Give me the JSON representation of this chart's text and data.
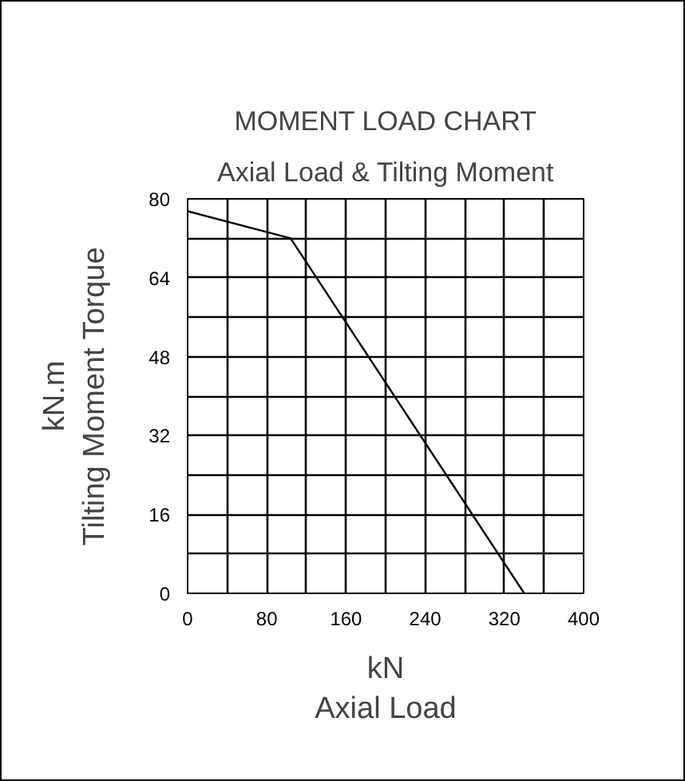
{
  "chart_data": {
    "type": "line",
    "title": "MOMENT LOAD CHART",
    "subtitle": "Axial Load & Tilting Moment",
    "xlabel": "kN\nAxial Load",
    "ylabel": "kN.m\nTilting Moment Torque",
    "xlim": [
      0,
      400
    ],
    "ylim": [
      0,
      80
    ],
    "xticks": [
      0,
      {
        "value": 40,
        "label": null
      },
      80,
      {
        "value": 120,
        "label": null
      },
      160,
      {
        "value": 200,
        "label": null
      },
      240,
      {
        "value": 280,
        "label": null
      },
      320,
      {
        "value": 360,
        "label": null
      },
      400
    ],
    "yticks": [
      0,
      {
        "value": 8,
        "label": null
      },
      16,
      {
        "value": 24,
        "label": null
      },
      32,
      {
        "value": 40,
        "label": null
      },
      48,
      {
        "value": 56,
        "label": null
      },
      64,
      {
        "value": 72,
        "label": null
      },
      80
    ],
    "grid": true,
    "series": [
      {
        "color": "#000000",
        "x": [
          0,
          104,
          340
        ],
        "values": [
          77.5,
          72,
          0
        ]
      }
    ]
  }
}
